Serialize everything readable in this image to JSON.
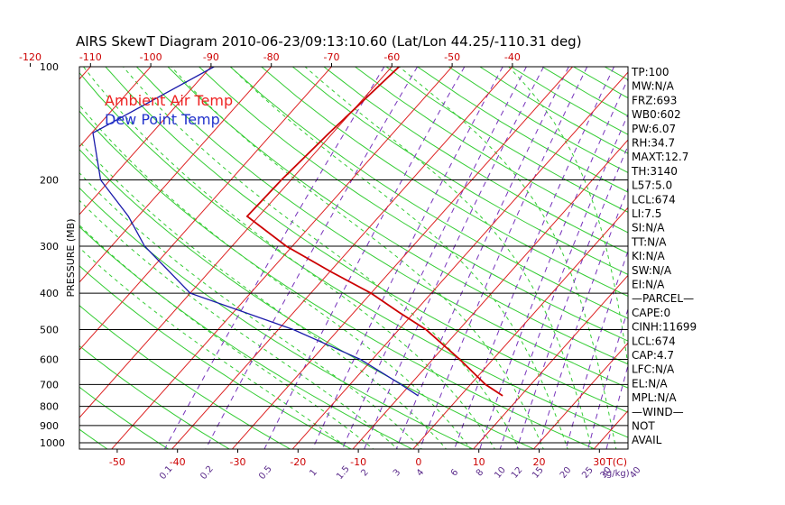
{
  "chart_data": {
    "type": "line",
    "title": "AIRS SkewT Diagram 2010-06-23/09:13:10.60 (Lat/Lon 44.25/-110.31 deg)",
    "ylabel": "PRESSURE (MB)",
    "pressure_ticks": [
      100,
      200,
      300,
      400,
      500,
      600,
      700,
      800,
      900,
      1000
    ],
    "top_temp_ticks": [
      -120,
      -110,
      -100,
      -90,
      -80,
      -70,
      -60,
      -50,
      -40
    ],
    "bottom_temp_ticks": [
      -50,
      -40,
      -30,
      -20,
      -10,
      0,
      10,
      20,
      30
    ],
    "bottom_axis_label": "T(C)",
    "mixing_ratio_ticks": [
      "0.1",
      "0.2",
      "0.5",
      "1",
      "1.5",
      "2",
      "3",
      "4",
      "6",
      "8",
      "10",
      "12",
      "15",
      "20",
      "25",
      "30",
      "40"
    ],
    "mixing_ratio_label": "(g/kg)",
    "legend": [
      {
        "name": "Ambient Air Temp",
        "color": "#ee2222"
      },
      {
        "name": "Dew Point Temp",
        "color": "#2233cc"
      }
    ],
    "series": [
      {
        "name": "Ambient Air Temp",
        "color": "#cc0000",
        "points": [
          {
            "p": 100,
            "t": -58.8
          },
          {
            "p": 150,
            "t": -60.6
          },
          {
            "p": 200,
            "t": -61.6
          },
          {
            "p": 250,
            "t": -61.9
          },
          {
            "p": 300,
            "t": -51.0
          },
          {
            "p": 350,
            "t": -40.0
          },
          {
            "p": 400,
            "t": -30.0
          },
          {
            "p": 450,
            "t": -22.5
          },
          {
            "p": 500,
            "t": -15.5
          },
          {
            "p": 600,
            "t": -5.5
          },
          {
            "p": 700,
            "t": 2.5
          },
          {
            "p": 750,
            "t": 7.0
          }
        ]
      },
      {
        "name": "Dew Point Temp",
        "color": "#1a1aaa",
        "points": [
          {
            "p": 100,
            "t": -89.5
          },
          {
            "p": 150,
            "t": -99.8
          },
          {
            "p": 200,
            "t": -91.6
          },
          {
            "p": 250,
            "t": -81.6
          },
          {
            "p": 300,
            "t": -74.5
          },
          {
            "p": 400,
            "t": -60.0
          },
          {
            "p": 500,
            "t": -37.5
          },
          {
            "p": 600,
            "t": -22.0
          },
          {
            "p": 700,
            "t": -11.5
          },
          {
            "p": 750,
            "t": -7.0
          }
        ]
      }
    ],
    "indices": [
      "TP:100",
      "MW:N/A",
      "FRZ:693",
      "WB0:602",
      "PW:6.07",
      "RH:34.7",
      "MAXT:12.7",
      "TH:3140",
      "L57:5.0",
      "LCL:674",
      "LI:7.5",
      "SI:N/A",
      "TT:N/A",
      "KI:N/A",
      "SW:N/A",
      "EI:N/A",
      "—PARCEL—",
      "CAPE:0",
      "CINH:11699",
      "LCL:674",
      "CAP:4.7",
      "LFC:N/A",
      "EL:N/A",
      "MPL:N/A",
      "—WIND—",
      "NOT",
      "AVAIL"
    ]
  }
}
